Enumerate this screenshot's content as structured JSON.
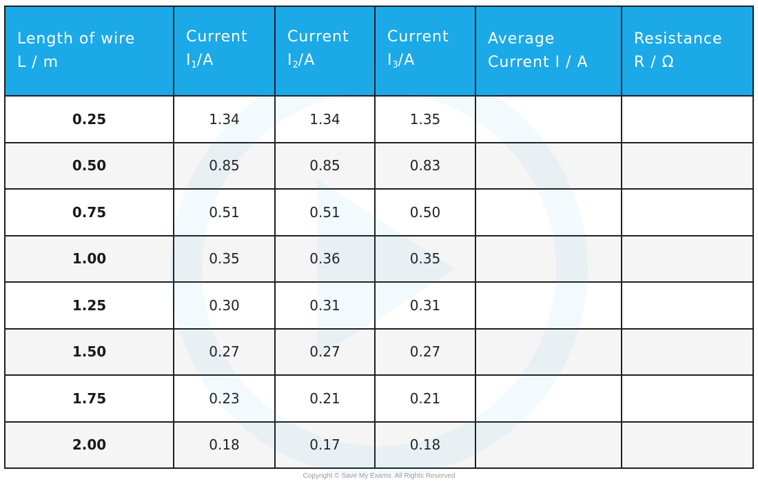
{
  "table": {
    "headers": [
      {
        "line1": "Length of wire",
        "line2": "L / m"
      },
      {
        "line1": "Current",
        "symbol": "I",
        "sub": "1",
        "unit": "/A"
      },
      {
        "line1": "Current",
        "symbol": "I",
        "sub": "2",
        "unit": "/A"
      },
      {
        "line1": "Current",
        "symbol": "I",
        "sub": "3",
        "unit": "/A"
      },
      {
        "line1": "Average",
        "line2": "Current I / A"
      },
      {
        "line1": "Resistance",
        "line2": "R / Ω"
      }
    ],
    "rows": [
      {
        "length": "0.25",
        "i1": "1.34",
        "i2": "1.34",
        "i3": "1.35",
        "avg": "",
        "r": ""
      },
      {
        "length": "0.50",
        "i1": "0.85",
        "i2": "0.85",
        "i3": "0.83",
        "avg": "",
        "r": ""
      },
      {
        "length": "0.75",
        "i1": "0.51",
        "i2": "0.51",
        "i3": "0.50",
        "avg": "",
        "r": ""
      },
      {
        "length": "1.00",
        "i1": "0.35",
        "i2": "0.36",
        "i3": "0.35",
        "avg": "",
        "r": ""
      },
      {
        "length": "1.25",
        "i1": "0.30",
        "i2": "0.31",
        "i3": "0.31",
        "avg": "",
        "r": ""
      },
      {
        "length": "1.50",
        "i1": "0.27",
        "i2": "0.27",
        "i3": "0.27",
        "avg": "",
        "r": ""
      },
      {
        "length": "1.75",
        "i1": "0.23",
        "i2": "0.21",
        "i3": "0.21",
        "avg": "",
        "r": ""
      },
      {
        "length": "2.00",
        "i1": "0.18",
        "i2": "0.17",
        "i3": "0.18",
        "avg": "",
        "r": ""
      }
    ]
  },
  "colors": {
    "header_bg": "#1ba9e8",
    "header_text": "#ffffff",
    "grid": "#1f1f1f",
    "alt_row": "#f4f4f4"
  },
  "copyright": "Copyright © Save My Exams. All Rights Reserved"
}
